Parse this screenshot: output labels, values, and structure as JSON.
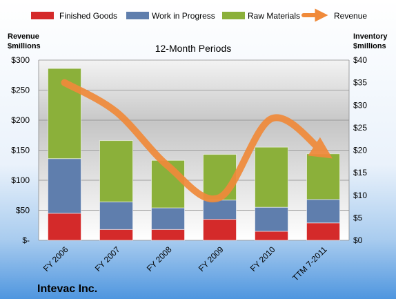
{
  "chart_data": {
    "type": "bar",
    "stacked": true,
    "subtitle": "12-Month Periods",
    "company": "Intevac Inc.",
    "categories": [
      "FY 2006",
      "FY 2007",
      "FY 2008",
      "FY 2009",
      "FY 2010",
      "TTM 7-2011"
    ],
    "left_axis": {
      "label_line1": "Revenue",
      "label_line2": "$millions",
      "ylim": [
        0,
        300
      ],
      "ticks": [
        0,
        50,
        100,
        150,
        200,
        250,
        300
      ],
      "tick_labels": [
        "$-",
        "$50",
        "$100",
        "$150",
        "$200",
        "$250",
        "$300"
      ]
    },
    "right_axis": {
      "label_line1": "Inventory",
      "label_line2": "$millions",
      "ylim": [
        0,
        40
      ],
      "ticks": [
        0,
        5,
        10,
        15,
        20,
        25,
        30,
        35,
        40
      ],
      "tick_labels": [
        "$0",
        "$5",
        "$10",
        "$15",
        "$20",
        "$25",
        "$30",
        "$35",
        "$40"
      ]
    },
    "series": [
      {
        "name": "Finished Goods",
        "axis": "left",
        "color": "#d42a2a",
        "values": [
          45,
          18,
          18,
          35,
          15,
          29
        ]
      },
      {
        "name": "Work in Progress",
        "axis": "left",
        "color": "#5f7ead",
        "values": [
          91,
          46,
          36,
          32,
          40,
          39
        ]
      },
      {
        "name": "Raw Materials",
        "axis": "left",
        "color": "#8bb03a",
        "values": [
          150,
          102,
          79,
          76,
          100,
          76
        ]
      },
      {
        "name": "Revenue",
        "axis": "right",
        "type": "line",
        "color": "#f08a3a",
        "values": [
          35,
          28.5,
          16.5,
          9.5,
          27,
          19.5
        ]
      }
    ],
    "grid": true,
    "legend_position": "top"
  }
}
